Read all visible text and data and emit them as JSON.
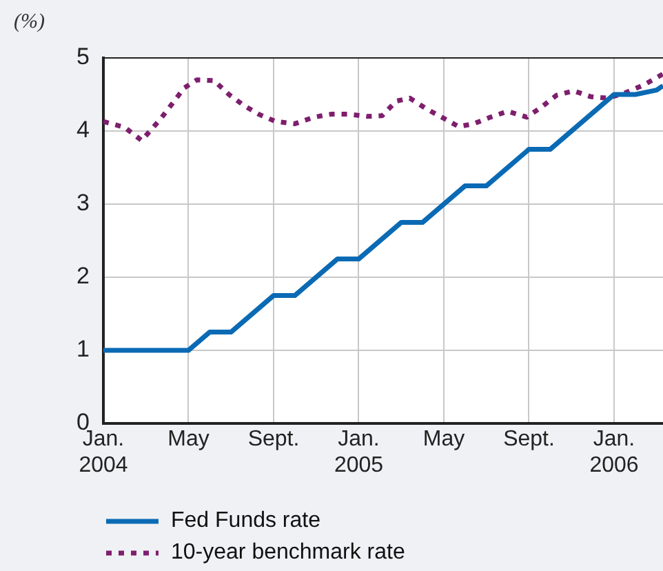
{
  "chart_data": {
    "type": "line",
    "ylabel": "(%)",
    "xlim": [
      "2004-01",
      "2006-03-10"
    ],
    "xticks": [
      {
        "value": "2004-01",
        "label": "Jan. 2004"
      },
      {
        "value": "2004-05",
        "label": "May"
      },
      {
        "value": "2004-09",
        "label": "Sept."
      },
      {
        "value": "2005-01",
        "label": "Jan. 2005"
      },
      {
        "value": "2005-05",
        "label": "May"
      },
      {
        "value": "2005-09",
        "label": "Sept."
      },
      {
        "value": "2006-01",
        "label": "Jan. 2006"
      }
    ],
    "ylim": [
      0,
      5
    ],
    "yticks": [
      0,
      1,
      2,
      3,
      4,
      5
    ],
    "grid": true,
    "legend": "bottom",
    "marker": "none",
    "series": [
      {
        "name": "Fed Funds rate",
        "color": "#0a6ab4",
        "line_style": "solid",
        "x": [
          "2004-01",
          "2004-02",
          "2004-03",
          "2004-04",
          "2004-05",
          "2004-06",
          "2004-07",
          "2004-08",
          "2004-09",
          "2004-10",
          "2004-11",
          "2004-12",
          "2005-01",
          "2005-02",
          "2005-03",
          "2005-04",
          "2005-05",
          "2005-06",
          "2005-07",
          "2005-08",
          "2005-09",
          "2005-10",
          "2005-11",
          "2005-12",
          "2006-01",
          "2006-02",
          "2006-03",
          "2006-03-10"
        ],
        "values": [
          1,
          1,
          1,
          1,
          1,
          1.25,
          1.25,
          1.5,
          1.75,
          1.75,
          2,
          2.25,
          2.25,
          2.5,
          2.75,
          2.75,
          3,
          3.25,
          3.25,
          3.5,
          3.75,
          3.75,
          4,
          4.25,
          4.5,
          4.5,
          4.56,
          4.62
        ]
      },
      {
        "name": "10-year benchmark rate",
        "color": "#7e1f6e",
        "line_style": "dotted",
        "x": [
          "2004-01",
          "2004-02",
          "2004-02-25",
          "2004-03-22",
          "2004-04-25",
          "2004-05-13",
          "2004-06-07",
          "2004-06-28",
          "2004-07-19",
          "2004-08-10",
          "2004-09-04",
          "2004-10",
          "2004-10-28",
          "2004-11-22",
          "2004-12-16",
          "2005-01-13",
          "2005-02-04",
          "2005-02-24",
          "2005-03-13",
          "2005-04-07",
          "2005-04-28",
          "2005-05-22",
          "2005-06-13",
          "2005-07-07",
          "2005-08",
          "2005-08-28",
          "2005-09-19",
          "2005-10-10",
          "2005-11-04",
          "2005-11-28",
          "2005-12-22",
          "2006-01-16",
          "2006-02-13",
          "2006-03-10"
        ],
        "values": [
          4.13,
          4.05,
          3.87,
          4.17,
          4.59,
          4.7,
          4.69,
          4.5,
          4.35,
          4.23,
          4.13,
          4.1,
          4.19,
          4.23,
          4.23,
          4.2,
          4.21,
          4.41,
          4.45,
          4.3,
          4.19,
          4.06,
          4.1,
          4.19,
          4.27,
          4.19,
          4.33,
          4.49,
          4.55,
          4.47,
          4.45,
          4.52,
          4.63,
          4.78
        ]
      }
    ]
  }
}
